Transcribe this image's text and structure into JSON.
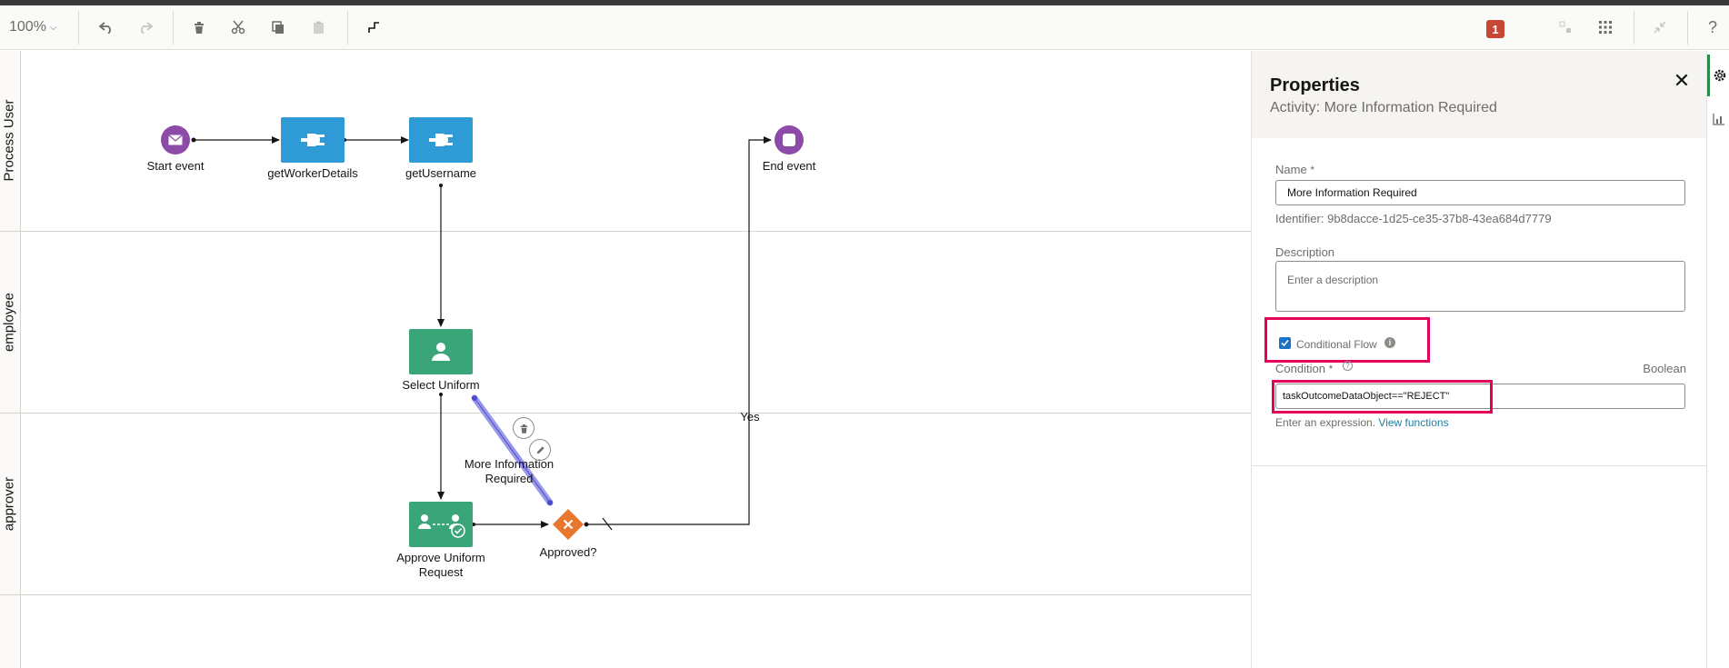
{
  "toolbar": {
    "zoom": "100%",
    "help": "?",
    "issue_count": "1"
  },
  "lanes": [
    "Process User",
    "employee",
    "approver"
  ],
  "nodes": {
    "start_event": "Start event",
    "get_worker_details": "getWorkerDetails",
    "get_username": "getUsername",
    "end_event": "End event",
    "select_uniform": "Select Uniform",
    "approve_uniform": "Approve Uniform\nRequest",
    "gateway": "Approved?",
    "flow_more_info": "More Information\nRequired",
    "flow_yes": "Yes"
  },
  "properties": {
    "title": "Properties",
    "subtitle": "Activity: More Information Required",
    "name_label": "Name",
    "required_mark": "*",
    "name_value": "More Information Required",
    "identifier": "Identifier: 9b8dacce-1d25-ce35-37b8-43ea684d7779",
    "description_label": "Description",
    "description_placeholder": "Enter a description",
    "conditional_flow_label": "Conditional Flow",
    "conditional_flow_checked": true,
    "condition_label": "Condition",
    "condition_type": "Boolean",
    "condition_value": "taskOutcomeDataObject==\"REJECT\"",
    "expression_hint": "Enter an expression.",
    "view_functions": "View functions"
  },
  "colors": {
    "service_task": "#2e9bd6",
    "human_task": "#3aa579",
    "event": "#8c4ba6",
    "gateway": "#e8762c",
    "highlight": "#e5005c",
    "selected_flow": "#9a9ae8"
  }
}
